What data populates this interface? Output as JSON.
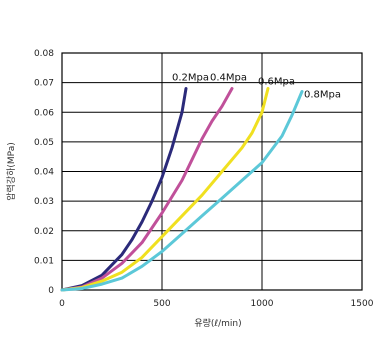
{
  "chart_data": {
    "type": "line",
    "title": "",
    "xlabel": "유량(ℓ/min)",
    "ylabel": "압력강하(MPa)",
    "xlim": [
      0,
      1500
    ],
    "ylim": [
      0,
      0.08
    ],
    "x_ticks": [
      "0",
      "500",
      "1000",
      "1500"
    ],
    "y_ticks": [
      "0",
      "0.01",
      "0.02",
      "0.03",
      "0.04",
      "0.05",
      "0.06",
      "0.07",
      "0.08"
    ],
    "grid": true,
    "series": [
      {
        "name": "0.2Mpa",
        "color": "#2b2a7a",
        "points": [
          [
            0,
            0
          ],
          [
            100,
            0.0015
          ],
          [
            200,
            0.005
          ],
          [
            300,
            0.012
          ],
          [
            350,
            0.017
          ],
          [
            400,
            0.023
          ],
          [
            450,
            0.03
          ],
          [
            500,
            0.038
          ],
          [
            550,
            0.048
          ],
          [
            600,
            0.06
          ],
          [
            620,
            0.068
          ]
        ]
      },
      {
        "name": "0.4Mpa",
        "color": "#c0509a",
        "points": [
          [
            0,
            0
          ],
          [
            100,
            0.001
          ],
          [
            200,
            0.004
          ],
          [
            300,
            0.009
          ],
          [
            400,
            0.016
          ],
          [
            500,
            0.026
          ],
          [
            600,
            0.037
          ],
          [
            650,
            0.044
          ],
          [
            700,
            0.051
          ],
          [
            750,
            0.057
          ],
          [
            800,
            0.062
          ],
          [
            850,
            0.068
          ]
        ]
      },
      {
        "name": "0.6Mpa",
        "color": "#f0e020",
        "points": [
          [
            0,
            0
          ],
          [
            100,
            0.0008
          ],
          [
            200,
            0.003
          ],
          [
            300,
            0.006
          ],
          [
            400,
            0.011
          ],
          [
            500,
            0.018
          ],
          [
            600,
            0.025
          ],
          [
            700,
            0.032
          ],
          [
            800,
            0.04
          ],
          [
            900,
            0.048
          ],
          [
            950,
            0.053
          ],
          [
            1000,
            0.06
          ],
          [
            1030,
            0.068
          ]
        ]
      },
      {
        "name": "0.8Mpa",
        "color": "#5cc8d8",
        "points": [
          [
            0,
            0
          ],
          [
            100,
            0.0005
          ],
          [
            200,
            0.002
          ],
          [
            300,
            0.004
          ],
          [
            400,
            0.008
          ],
          [
            500,
            0.013
          ],
          [
            600,
            0.019
          ],
          [
            700,
            0.025
          ],
          [
            800,
            0.031
          ],
          [
            900,
            0.037
          ],
          [
            1000,
            0.043
          ],
          [
            1100,
            0.052
          ],
          [
            1150,
            0.059
          ],
          [
            1200,
            0.067
          ]
        ]
      }
    ]
  }
}
